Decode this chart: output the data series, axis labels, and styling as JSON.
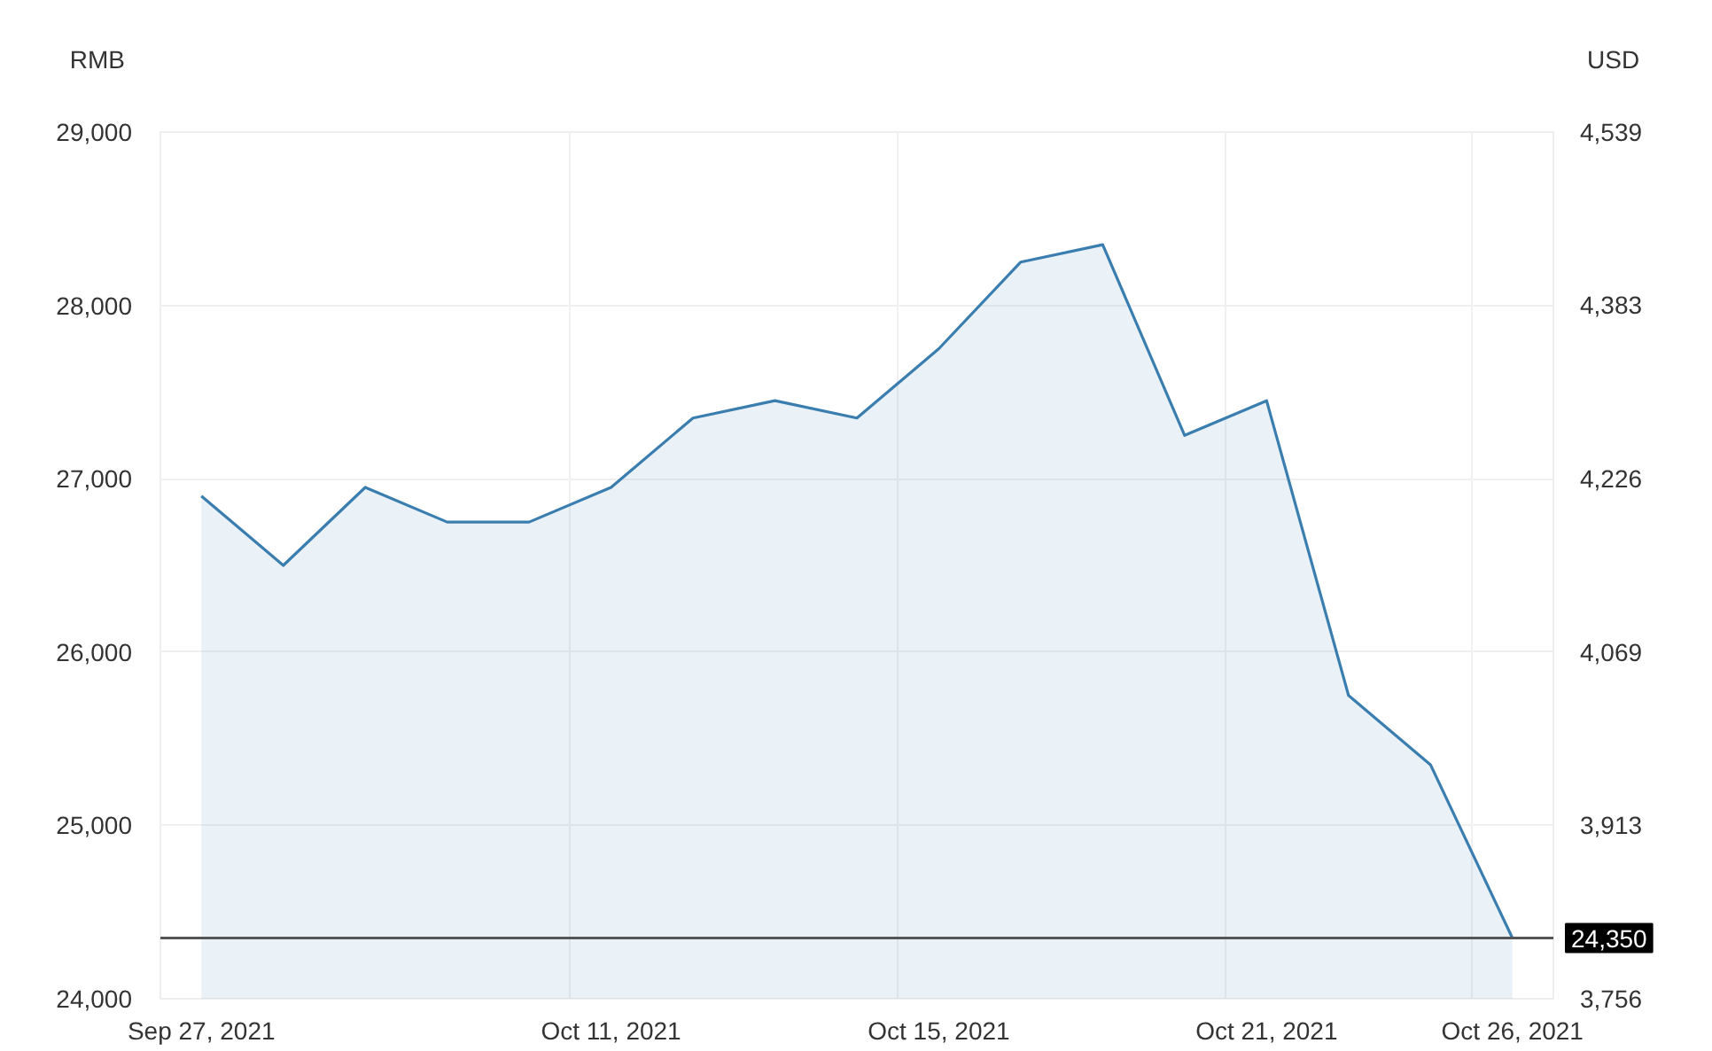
{
  "chart_data": {
    "type": "area",
    "categories": [
      "Sep 27, 2021",
      null,
      null,
      null,
      null,
      "Oct 11, 2021",
      null,
      null,
      null,
      "Oct 15, 2021",
      null,
      null,
      null,
      "Oct 21, 2021",
      null,
      null,
      "Oct 26, 2021"
    ],
    "series": [
      {
        "color": "#3a7eb0",
        "values": [
          26900,
          26500,
          26950,
          26750,
          26750,
          26950,
          27350,
          27450,
          27350,
          27750,
          28250,
          28350,
          27250,
          27450,
          25750,
          25350,
          24350
        ]
      }
    ],
    "ylabel": "RMB",
    "y2label": "USD",
    "ylim": [
      24000,
      29000
    ],
    "yticks": [
      {
        "value": 24000,
        "label": "24,000"
      },
      {
        "value": 25000,
        "label": "25,000"
      },
      {
        "value": 26000,
        "label": "26,000"
      },
      {
        "value": 27000,
        "label": "27,000"
      },
      {
        "value": 28000,
        "label": "28,000"
      },
      {
        "value": 29000,
        "label": "29,000"
      }
    ],
    "y2lim": [
      3756,
      4539
    ],
    "y2ticks": [
      {
        "value": 3756,
        "label": "3,756"
      },
      {
        "value": 3913,
        "label": "3,913"
      },
      {
        "value": 4069,
        "label": "4,069"
      },
      {
        "value": 4226,
        "label": "4,226"
      },
      {
        "value": 4383,
        "label": "4,383"
      },
      {
        "value": 4539,
        "label": "4,539"
      }
    ],
    "ref_lines": [
      {
        "axis": "y",
        "value": 24350,
        "label": "24,350",
        "color": "#555555"
      }
    ],
    "grid": true
  }
}
